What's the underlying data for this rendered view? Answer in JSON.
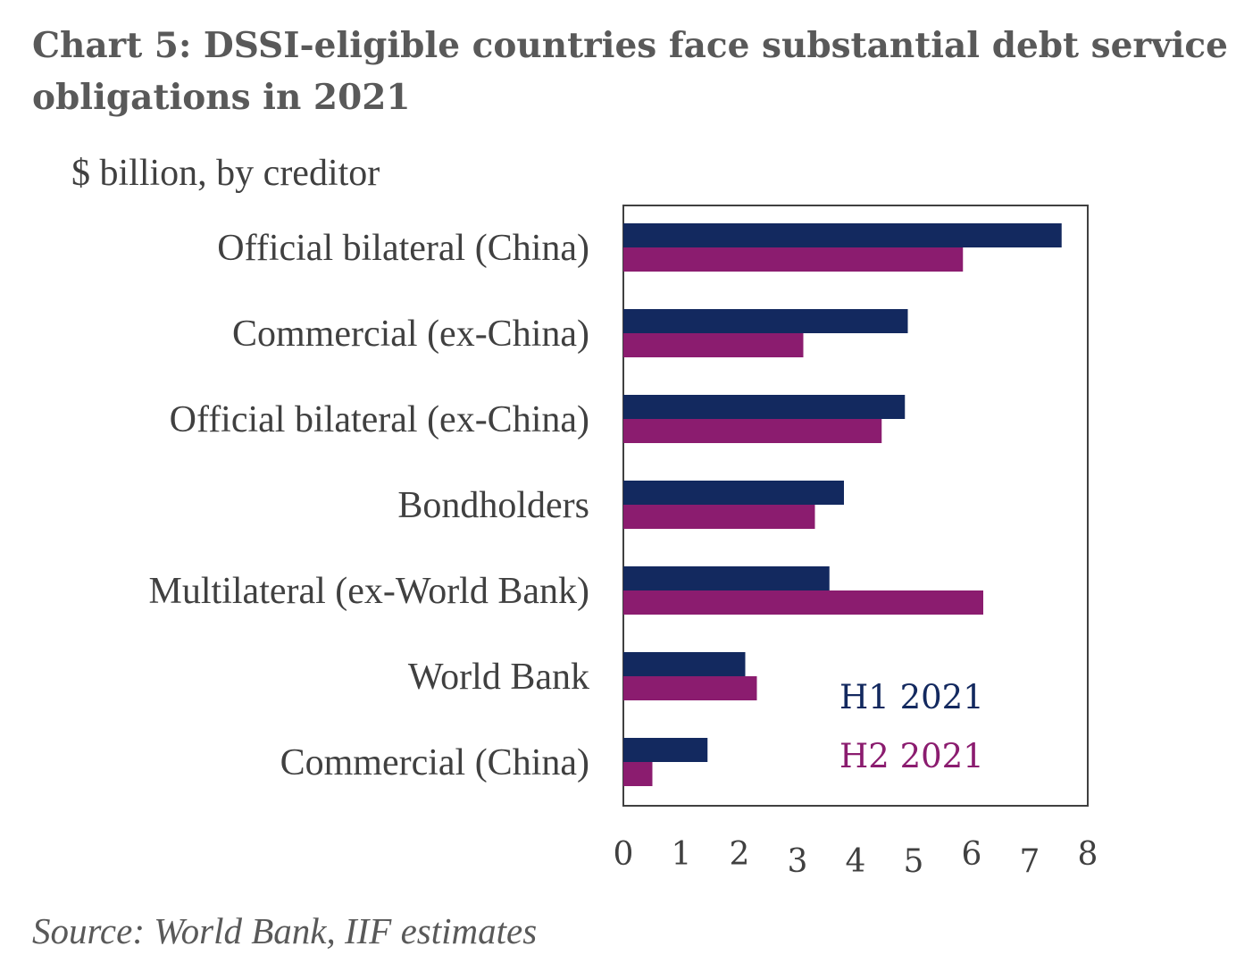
{
  "title": "Chart 5:  DSSI-eligible countries face substantial debt service obligations in 2021",
  "subtitle": "$ billion, by creditor",
  "source": "Source: World Bank, IIF estimates",
  "chart_data": {
    "type": "bar",
    "orientation": "horizontal",
    "categories": [
      "Official bilateral (China)",
      "Commercial (ex-China)",
      "Official bilateral (ex-China)",
      "Bondholders",
      "Multilateral (ex-World Bank)",
      "World Bank",
      "Commercial (China)"
    ],
    "series": [
      {
        "name": "H1 2021",
        "color": "#13295f",
        "values": [
          7.55,
          4.9,
          4.85,
          3.8,
          3.55,
          2.1,
          1.45
        ]
      },
      {
        "name": "H2 2021",
        "color": "#8b1c6f",
        "values": [
          5.85,
          3.1,
          4.45,
          3.3,
          6.2,
          2.3,
          0.5
        ]
      }
    ],
    "xlim": [
      0,
      8
    ],
    "xticks": [
      "0",
      "1",
      "2",
      "3",
      "4",
      "5",
      "6",
      "7",
      "8"
    ],
    "xlabel": "",
    "ylabel": "",
    "legend": "bottom-right inside plot",
    "grid": false
  }
}
